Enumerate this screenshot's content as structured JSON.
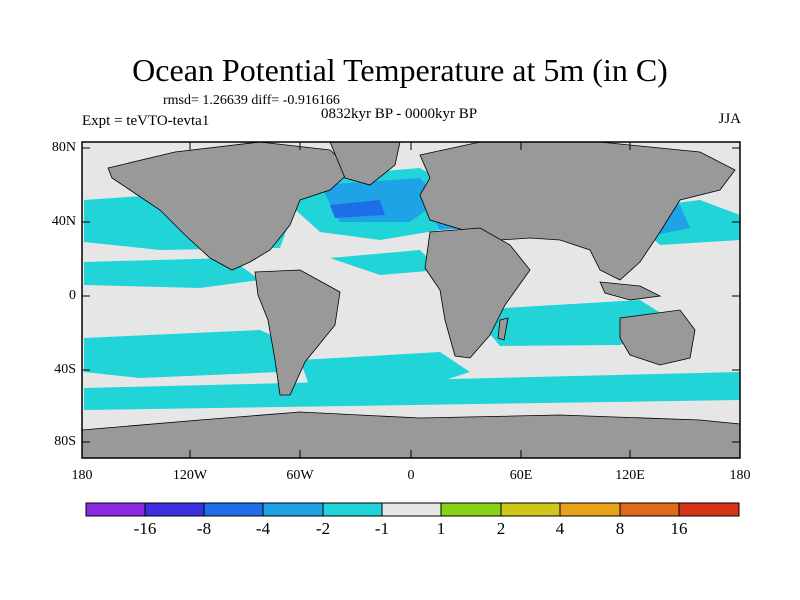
{
  "title": "Ocean Potential Temperature at 5m (in C)",
  "stats": "rmsd= 1.26639  diff= -0.916166",
  "experiment": "Expt = teVTO-tevta1",
  "period": "0832kyr BP - 0000kyr BP",
  "season": "JJA",
  "y_axis": {
    "labels": [
      "80N",
      "40N",
      "0",
      "40S",
      "80S"
    ]
  },
  "x_axis": {
    "labels": [
      "180",
      "120W",
      "60W",
      "0",
      "60E",
      "120E",
      "180"
    ]
  },
  "colorbar": {
    "labels": [
      "-16",
      "-8",
      "-4",
      "-2",
      "-1",
      "1",
      "2",
      "4",
      "8",
      "16"
    ],
    "colors": [
      "#8a2be2",
      "#3c2fe0",
      "#1e6ee8",
      "#1ea3e6",
      "#21d4d8",
      "#e6e6e6",
      "#88d21a",
      "#cfc61a",
      "#e8a31a",
      "#e06a1a",
      "#d8341a"
    ]
  },
  "colors": {
    "land": "#999999",
    "ocean_neutral": "#e6e6e6",
    "ocean_cool": "#21d4d8",
    "ocean_cooler": "#1ea3e6",
    "ocean_coolest": "#1e6ee8"
  }
}
